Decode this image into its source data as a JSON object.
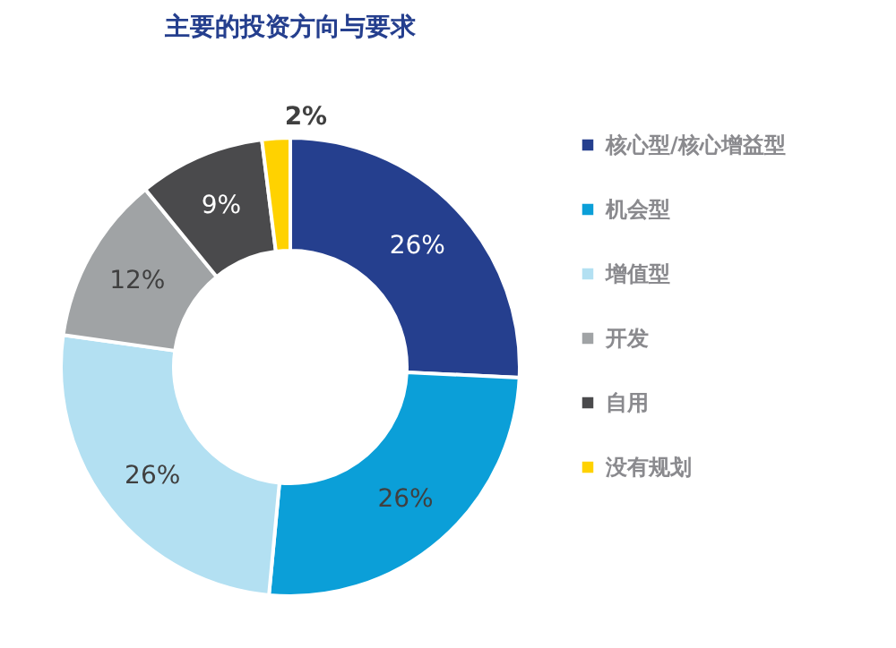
{
  "chart_data": {
    "type": "donut",
    "title": "主要的投资方向与要求",
    "categories": [
      "核心型/核心增益型",
      "机会型",
      "增值型",
      "开发",
      "自用",
      "没有规划"
    ],
    "values": [
      26,
      26,
      26,
      12,
      9,
      2
    ],
    "value_labels": [
      "26%",
      "26%",
      "26%",
      "12%",
      "9%",
      "2%"
    ],
    "colors": [
      "#253f8e",
      "#0b9fd8",
      "#b3e0f2",
      "#a0a3a5",
      "#4a4a4c",
      "#ffd200"
    ],
    "legend": "right"
  }
}
